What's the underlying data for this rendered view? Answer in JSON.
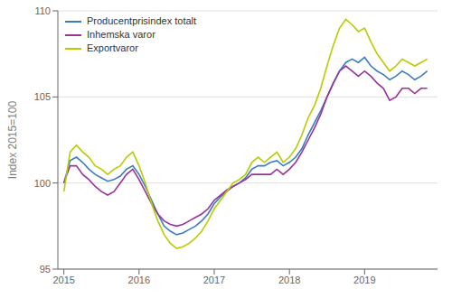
{
  "chart_data": {
    "type": "line",
    "ylabel": "Index 2015=100",
    "x": [
      2015.0,
      2015.0833333333333,
      2015.1666666666667,
      2015.25,
      2015.3333333333333,
      2015.4166666666667,
      2015.5,
      2015.5833333333333,
      2015.6666666666667,
      2015.75,
      2015.8333333333333,
      2015.9166666666667,
      2016.0,
      2016.0833333333333,
      2016.1666666666667,
      2016.25,
      2016.3333333333333,
      2016.4166666666667,
      2016.5,
      2016.5833333333333,
      2016.6666666666667,
      2016.75,
      2016.8333333333333,
      2016.9166666666667,
      2017.0,
      2017.0833333333333,
      2017.1666666666667,
      2017.25,
      2017.3333333333333,
      2017.4166666666667,
      2017.5,
      2017.5833333333333,
      2017.6666666666667,
      2017.75,
      2017.8333333333333,
      2017.9166666666667,
      2018.0,
      2018.0833333333333,
      2018.1666666666667,
      2018.25,
      2018.3333333333333,
      2018.4166666666667,
      2018.5,
      2018.5833333333333,
      2018.6666666666667,
      2018.75,
      2018.8333333333333,
      2018.9166666666667,
      2019.0,
      2019.0833333333333,
      2019.1666666666667,
      2019.25,
      2019.3333333333333,
      2019.4166666666667,
      2019.5,
      2019.5833333333333,
      2019.6666666666667,
      2019.75,
      2019.8333333333333
    ],
    "xlim": [
      2014.92,
      2019.97
    ],
    "xticks": [
      2015,
      2016,
      2017,
      2018,
      2019
    ],
    "ylim": [
      95,
      110
    ],
    "yticks": [
      95,
      100,
      105,
      110
    ],
    "grid": true,
    "legend": "upper left",
    "series": [
      {
        "name": "Producentprisindex totalt",
        "color": "#3a7dbf",
        "values": [
          100.0,
          101.3,
          101.5,
          101.2,
          100.8,
          100.5,
          100.3,
          100.1,
          100.2,
          100.4,
          100.8,
          101.0,
          100.5,
          99.8,
          99.0,
          98.2,
          97.5,
          97.2,
          97.0,
          97.1,
          97.3,
          97.5,
          97.8,
          98.2,
          98.8,
          99.2,
          99.5,
          99.8,
          100.0,
          100.3,
          100.8,
          101.0,
          101.0,
          101.2,
          101.3,
          101.0,
          101.2,
          101.5,
          102.0,
          102.8,
          103.5,
          104.2,
          105.0,
          105.8,
          106.5,
          107.0,
          107.2,
          107.0,
          107.3,
          106.8,
          106.5,
          106.3,
          106.0,
          106.2,
          106.5,
          106.3,
          106.0,
          106.2,
          106.5
        ]
      },
      {
        "name": "Inhemska varor",
        "color": "#993399",
        "values": [
          100.0,
          101.0,
          101.0,
          100.5,
          100.2,
          99.8,
          99.5,
          99.3,
          99.5,
          100.0,
          100.5,
          100.8,
          100.2,
          99.5,
          98.8,
          98.2,
          97.8,
          97.6,
          97.5,
          97.6,
          97.8,
          98.0,
          98.2,
          98.5,
          99.0,
          99.3,
          99.6,
          99.8,
          100.0,
          100.2,
          100.5,
          100.5,
          100.5,
          100.5,
          100.8,
          100.5,
          100.8,
          101.2,
          101.8,
          102.5,
          103.2,
          104.0,
          105.0,
          105.8,
          106.5,
          106.8,
          106.5,
          106.2,
          106.5,
          106.2,
          105.8,
          105.5,
          104.8,
          105.0,
          105.5,
          105.5,
          105.2,
          105.5,
          105.5
        ]
      },
      {
        "name": "Exportvaror",
        "color": "#b8cc00",
        "values": [
          99.5,
          101.8,
          102.2,
          101.8,
          101.5,
          101.0,
          100.8,
          100.5,
          100.8,
          101.0,
          101.5,
          101.8,
          101.0,
          100.0,
          98.8,
          97.8,
          97.0,
          96.5,
          96.2,
          96.3,
          96.5,
          96.8,
          97.2,
          97.8,
          98.5,
          99.0,
          99.5,
          100.0,
          100.2,
          100.5,
          101.2,
          101.5,
          101.2,
          101.5,
          101.8,
          101.2,
          101.5,
          102.0,
          102.8,
          103.8,
          104.5,
          105.5,
          106.8,
          108.0,
          109.0,
          109.5,
          109.2,
          108.8,
          109.0,
          108.2,
          107.5,
          107.0,
          106.5,
          106.8,
          107.2,
          107.0,
          106.8,
          107.0,
          107.2
        ]
      }
    ]
  }
}
